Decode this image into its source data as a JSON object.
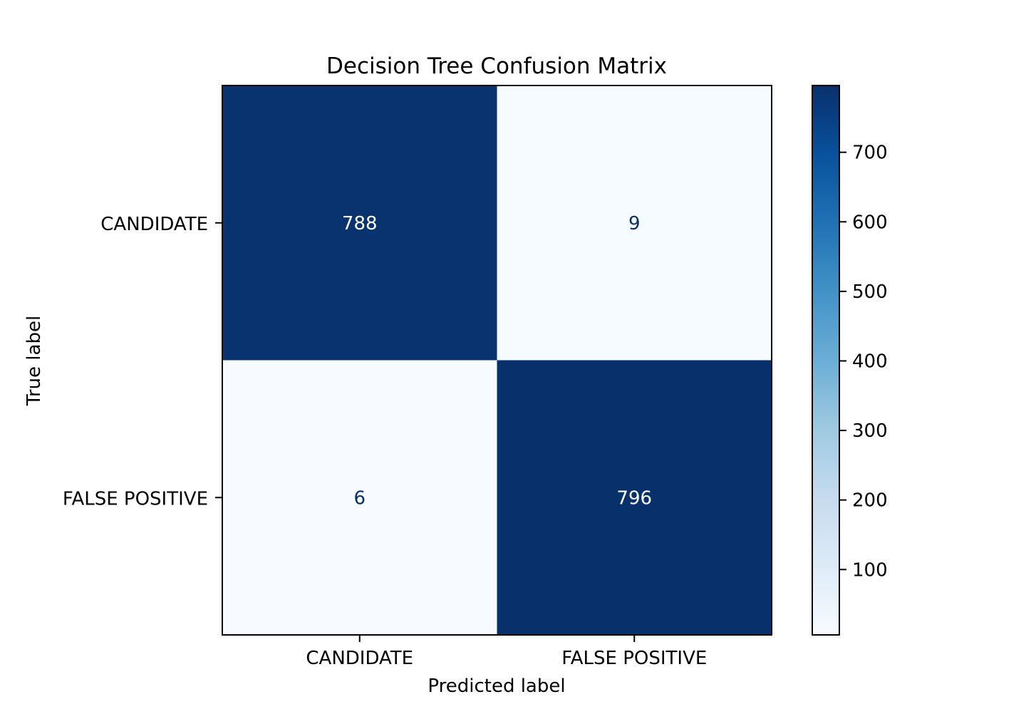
{
  "chart_data": {
    "type": "heatmap",
    "title": "Decision Tree Confusion Matrix",
    "xlabel": "Predicted label",
    "ylabel": "True label",
    "x_categories": [
      "CANDIDATE",
      "FALSE POSITIVE"
    ],
    "y_categories": [
      "CANDIDATE",
      "FALSE POSITIVE"
    ],
    "values": [
      [
        788,
        9
      ],
      [
        6,
        796
      ]
    ],
    "colormap": "Blues",
    "colorbar": {
      "range": [
        6,
        796
      ],
      "ticks": [
        100,
        200,
        300,
        400,
        500,
        600,
        700
      ]
    },
    "colors": {
      "high": "#08306b",
      "low": "#f7fbff",
      "text_on_dark": "#ffffff",
      "text_on_light": "#08306b"
    }
  }
}
